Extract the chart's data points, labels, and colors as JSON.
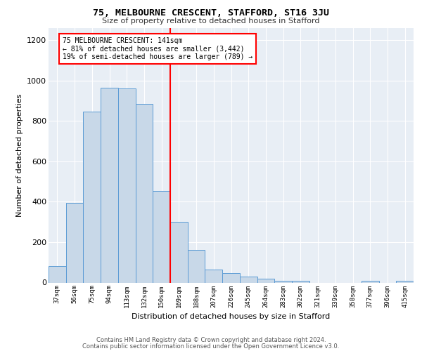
{
  "title1": "75, MELBOURNE CRESCENT, STAFFORD, ST16 3JU",
  "title2": "Size of property relative to detached houses in Stafford",
  "xlabel": "Distribution of detached houses by size in Stafford",
  "ylabel": "Number of detached properties",
  "categories": [
    "37sqm",
    "56sqm",
    "75sqm",
    "94sqm",
    "113sqm",
    "132sqm",
    "150sqm",
    "169sqm",
    "188sqm",
    "207sqm",
    "226sqm",
    "245sqm",
    "264sqm",
    "283sqm",
    "302sqm",
    "321sqm",
    "339sqm",
    "358sqm",
    "377sqm",
    "396sqm",
    "415sqm"
  ],
  "values": [
    80,
    395,
    845,
    965,
    960,
    885,
    455,
    300,
    160,
    65,
    48,
    28,
    18,
    10,
    10,
    0,
    0,
    0,
    10,
    0,
    10
  ],
  "bar_color": "#c8d8e8",
  "bar_edge_color": "#5b9bd5",
  "vline_x": 6.5,
  "vline_color": "red",
  "annotation_text": "75 MELBOURNE CRESCENT: 141sqm\n← 81% of detached houses are smaller (3,442)\n19% of semi-detached houses are larger (789) →",
  "annotation_box_color": "white",
  "annotation_box_edge": "red",
  "ylim": [
    0,
    1260
  ],
  "yticks": [
    0,
    200,
    400,
    600,
    800,
    1000,
    1200
  ],
  "background_color": "#e8eef5",
  "footer1": "Contains HM Land Registry data © Crown copyright and database right 2024.",
  "footer2": "Contains public sector information licensed under the Open Government Licence v3.0."
}
